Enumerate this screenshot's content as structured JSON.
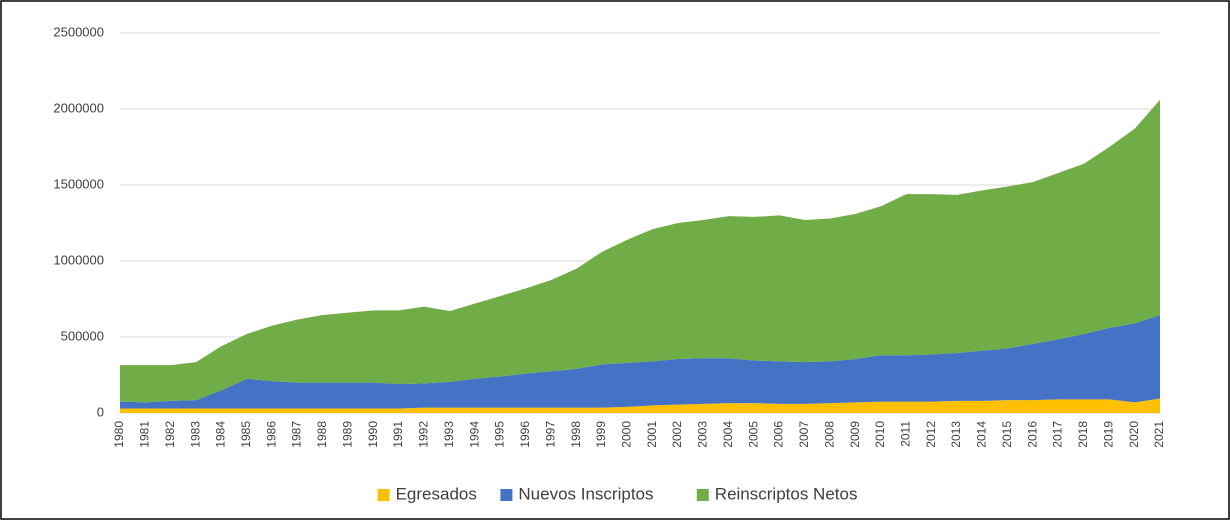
{
  "chart_data": {
    "type": "stacked_area",
    "categories": [
      "1980",
      "1981",
      "1982",
      "1983",
      "1984",
      "1985",
      "1986",
      "1987",
      "1988",
      "1989",
      "1990",
      "1991",
      "1992",
      "1993",
      "1994",
      "1995",
      "1996",
      "1997",
      "1998",
      "1999",
      "2000",
      "2001",
      "2002",
      "2003",
      "2004",
      "2005",
      "2006",
      "2007",
      "2008",
      "2009",
      "2010",
      "2011",
      "2012",
      "2013",
      "2014",
      "2015",
      "2016",
      "2017",
      "2018",
      "2019",
      "2020",
      "2021"
    ],
    "series": [
      {
        "name": "Egresados",
        "color": "#ffc000",
        "values": [
          30000,
          30000,
          30000,
          30000,
          30000,
          30000,
          30000,
          30000,
          30000,
          30000,
          30000,
          30000,
          35000,
          35000,
          35000,
          35000,
          35000,
          35000,
          35000,
          35000,
          40000,
          50000,
          55000,
          60000,
          65000,
          65000,
          60000,
          60000,
          65000,
          70000,
          75000,
          75000,
          75000,
          80000,
          80000,
          85000,
          85000,
          90000,
          90000,
          90000,
          70000,
          95000
        ]
      },
      {
        "name": "Nuevos Inscriptos",
        "color": "#4472c4",
        "values": [
          45000,
          40000,
          50000,
          55000,
          120000,
          195000,
          180000,
          170000,
          170000,
          170000,
          170000,
          160000,
          160000,
          170000,
          190000,
          205000,
          225000,
          240000,
          255000,
          285000,
          290000,
          290000,
          300000,
          300000,
          295000,
          280000,
          280000,
          275000,
          275000,
          285000,
          305000,
          305000,
          310000,
          315000,
          330000,
          340000,
          370000,
          395000,
          430000,
          470000,
          520000,
          550000
        ]
      },
      {
        "name": "Reinscriptos Netos",
        "color": "#70ad47",
        "values": [
          240000,
          245000,
          235000,
          250000,
          290000,
          295000,
          365000,
          415000,
          445000,
          460000,
          475000,
          485000,
          505000,
          465000,
          495000,
          530000,
          560000,
          600000,
          660000,
          740000,
          810000,
          870000,
          895000,
          910000,
          935000,
          945000,
          960000,
          935000,
          940000,
          955000,
          980000,
          1060000,
          1055000,
          1040000,
          1055000,
          1065000,
          1065000,
          1095000,
          1120000,
          1190000,
          1280000,
          1415000
        ]
      }
    ],
    "ylim": [
      0,
      2500000
    ],
    "yticks": [
      0,
      500000,
      1000000,
      1500000,
      2000000,
      2500000
    ],
    "grid": true,
    "legend": "bottom"
  }
}
